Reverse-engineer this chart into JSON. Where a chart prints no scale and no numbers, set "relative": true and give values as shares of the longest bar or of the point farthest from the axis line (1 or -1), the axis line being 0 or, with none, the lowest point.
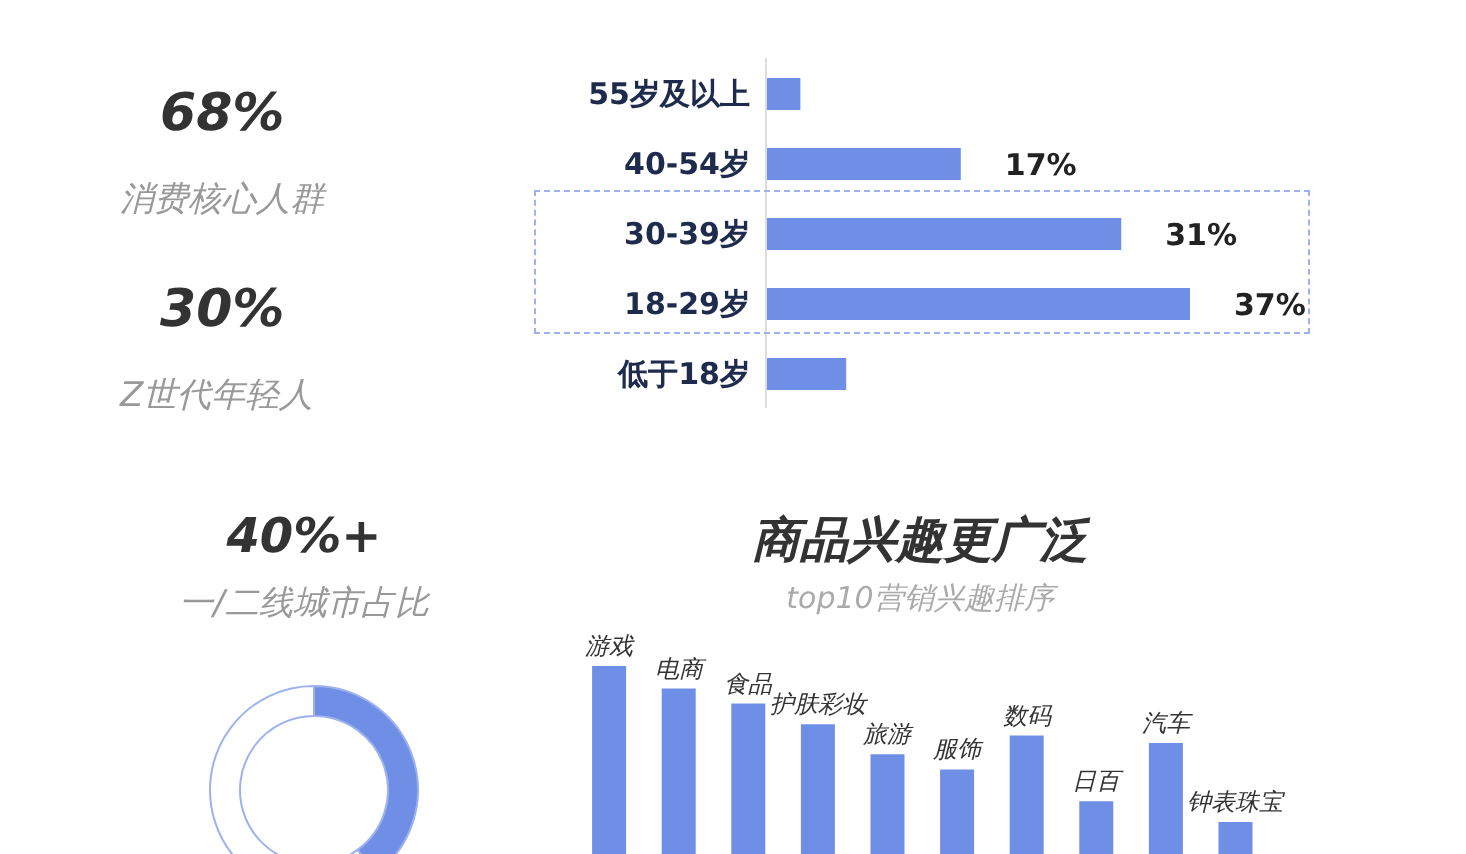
{
  "chart_data": [
    {
      "type": "other",
      "annotations": [
        "68%",
        "消费核心人群",
        "30%",
        "Z世代年轻人"
      ]
    },
    {
      "type": "bar",
      "orientation": "horizontal",
      "categories": [
        "55岁及以上",
        "40-54岁",
        "30-39岁",
        "18-29岁",
        "低于18岁"
      ],
      "values": [
        3,
        17,
        31,
        37,
        7
      ],
      "value_labels": [
        null,
        "17%",
        "31%",
        "37%",
        null
      ],
      "color": "#6f8fe6"
    },
    {
      "type": "donut",
      "title": "40%+",
      "subtitle": "一/二线城市占比",
      "categories": [
        null,
        null
      ],
      "values": [
        40,
        60
      ],
      "colors": [
        "#6f8fe6",
        "#ffffff"
      ]
    },
    {
      "type": "bar",
      "relative": true,
      "title": "商品兴趣更广泛",
      "subtitle": "top10营销兴趣排序",
      "categories": [
        "游戏",
        "电商",
        "食品",
        "护肤彩妆",
        "旅游",
        "服饰",
        "数码",
        "日百",
        "汽车",
        "钟表珠宝"
      ],
      "values": [
        1,
        0.88,
        0.8,
        0.69,
        0.53,
        0.45,
        0.63,
        0.28,
        0.59,
        0.17
      ],
      "color": "#6f8fe6",
      "data_labels": false
    }
  ]
}
